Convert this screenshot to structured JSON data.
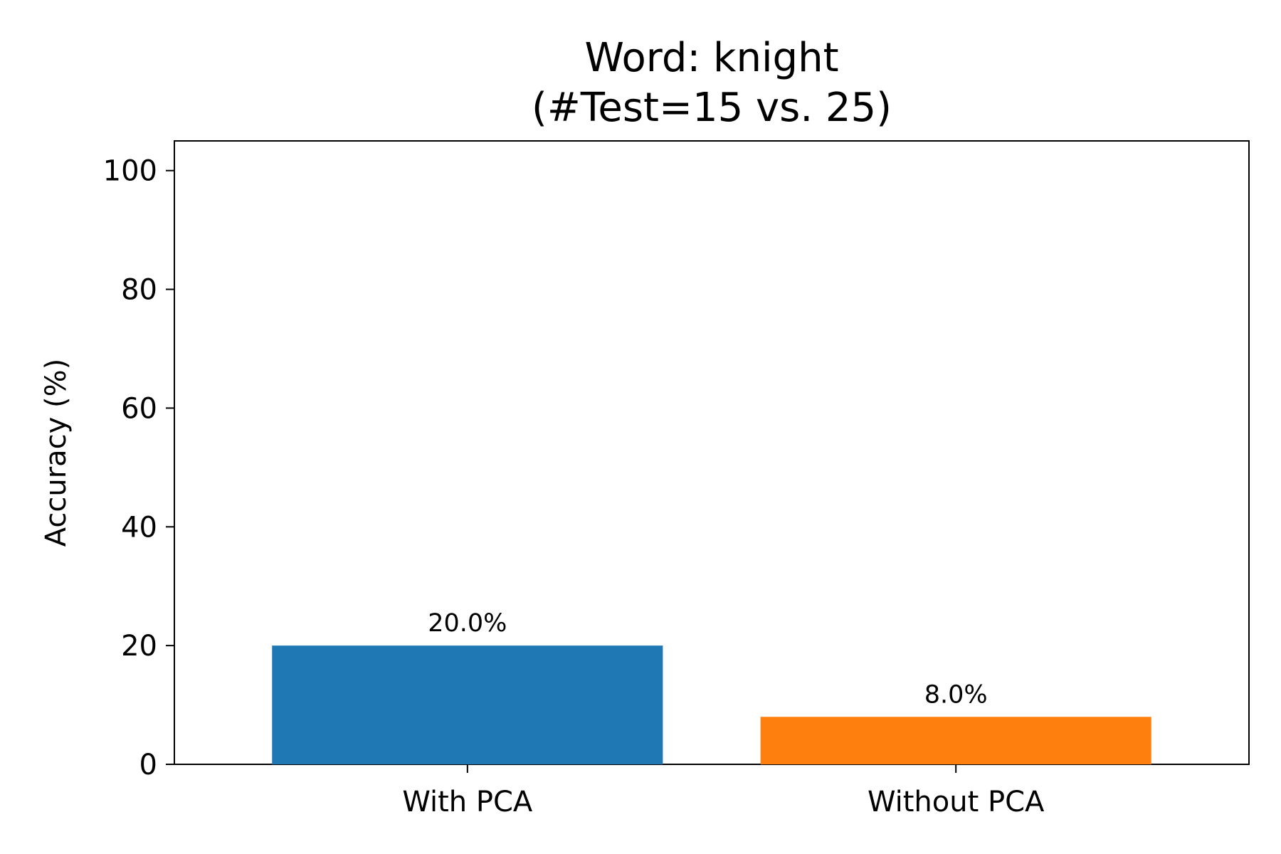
{
  "chart_data": {
    "type": "bar",
    "title": "Word: knight",
    "subtitle": "(#Test=15 vs. 25)",
    "xlabel": "",
    "ylabel": "Accuracy (%)",
    "categories": [
      "With PCA",
      "Without PCA"
    ],
    "values": [
      20.0,
      8.0
    ],
    "value_labels": [
      "20.0%",
      "8.0%"
    ],
    "colors": [
      "#1f77b4",
      "#ff7f0e"
    ],
    "ylim": [
      0,
      105
    ],
    "yticks": [
      0,
      20,
      40,
      60,
      80,
      100
    ],
    "grid": false,
    "legend": "none"
  }
}
